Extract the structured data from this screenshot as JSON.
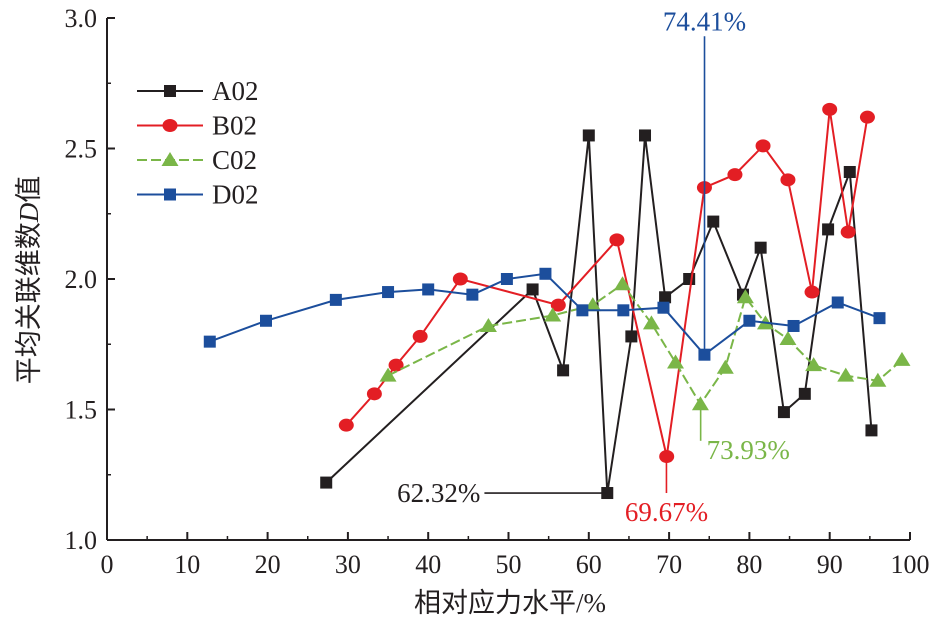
{
  "chart_data": {
    "type": "line",
    "xlabel": "相对应力水平/%",
    "ylabel": "平均关联维数",
    "ylabel_italic": "D",
    "ylabel_suffix": "值",
    "xlim": [
      0,
      100
    ],
    "ylim": [
      1.0,
      3.0
    ],
    "xticks": [
      "0",
      "10",
      "20",
      "30",
      "40",
      "50",
      "60",
      "70",
      "80",
      "90",
      "100"
    ],
    "yticks": [
      "1.0",
      "1.5",
      "2.0",
      "2.5",
      "3.0"
    ],
    "grid": false,
    "legend_position": "top-left",
    "series": [
      {
        "name": "A02",
        "color": "#231f20",
        "marker": "square",
        "dash": "solid",
        "x": [
          27.3,
          53.0,
          56.8,
          60.0,
          62.3,
          65.3,
          67.0,
          69.5,
          72.5,
          75.5,
          79.2,
          81.4,
          84.3,
          86.9,
          89.8,
          92.5,
          95.2
        ],
        "y": [
          1.22,
          1.96,
          1.65,
          2.55,
          1.18,
          1.78,
          2.55,
          1.93,
          2.0,
          2.22,
          1.94,
          2.12,
          1.49,
          1.56,
          2.19,
          2.41,
          1.42
        ]
      },
      {
        "name": "B02",
        "color": "#e31e24",
        "marker": "circle",
        "dash": "solid",
        "x": [
          29.8,
          33.3,
          36.0,
          39.0,
          44.0,
          56.2,
          63.5,
          69.7,
          74.4,
          78.2,
          81.7,
          84.8,
          87.8,
          90.0,
          92.3,
          94.7
        ],
        "y": [
          1.44,
          1.56,
          1.67,
          1.78,
          2.0,
          1.9,
          2.15,
          1.32,
          2.35,
          2.4,
          2.51,
          2.38,
          1.95,
          2.65,
          2.18,
          2.62
        ]
      },
      {
        "name": "C02",
        "color": "#7ab648",
        "marker": "triangle",
        "dash": "dashed",
        "x": [
          35.0,
          47.5,
          55.5,
          60.5,
          64.2,
          67.8,
          70.8,
          73.9,
          77.0,
          79.5,
          82.0,
          84.8,
          88.0,
          92.0,
          96.0,
          99.0
        ],
        "y": [
          1.63,
          1.82,
          1.86,
          1.9,
          1.98,
          1.83,
          1.68,
          1.52,
          1.66,
          1.93,
          1.83,
          1.77,
          1.67,
          1.63,
          1.61,
          1.69
        ]
      },
      {
        "name": "D02",
        "color": "#1c4e9c",
        "marker": "square",
        "dash": "solid",
        "x": [
          12.8,
          19.8,
          28.5,
          35.0,
          40.0,
          45.5,
          49.8,
          54.6,
          59.2,
          64.3,
          69.3,
          74.4,
          80.0,
          85.5,
          91.0,
          96.2
        ],
        "y": [
          1.76,
          1.84,
          1.92,
          1.95,
          1.96,
          1.94,
          2.0,
          2.02,
          1.88,
          1.88,
          1.89,
          1.71,
          1.84,
          1.82,
          1.91,
          1.85
        ]
      }
    ],
    "annotations": [
      {
        "text": "74.41%",
        "color": "#1c4e9c",
        "x": 74.41,
        "y": 1.71,
        "y_end": 2.93,
        "style": "vertical-up",
        "label_anchor": "middle",
        "label_side": "top"
      },
      {
        "text": "62.32%",
        "color": "#231f20",
        "x": 62.32,
        "y": 1.18,
        "x_end": 47.0,
        "style": "horizontal-left",
        "label_anchor": "end",
        "label_side": "left"
      },
      {
        "text": "69.67%",
        "color": "#e31e24",
        "x": 69.67,
        "y": 1.32,
        "y_end": 1.18,
        "style": "vertical-down",
        "label_anchor": "middle",
        "label_side": "below"
      },
      {
        "text": "73.93%",
        "color": "#7ab648",
        "x": 73.93,
        "y": 1.52,
        "y_end": 1.38,
        "style": "vertical-down",
        "label_anchor": "start",
        "label_side": "right"
      }
    ]
  }
}
